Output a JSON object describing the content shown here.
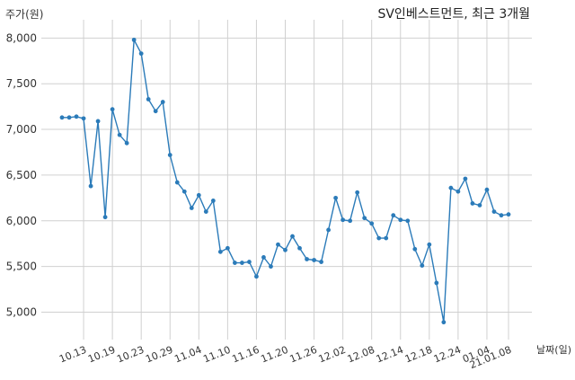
{
  "chart_data": {
    "type": "line",
    "title": "SV인베스트먼트, 최근 3개월",
    "ylabel": "주가(원)",
    "xlabel": "날짜(일)",
    "ylim": [
      4700,
      8200
    ],
    "yticks": [
      5000,
      5500,
      6000,
      6500,
      7000,
      7500,
      8000
    ],
    "ytick_labels": [
      "5,000",
      "5,500",
      "6,000",
      "6,500",
      "7,000",
      "7,500",
      "8,000"
    ],
    "xtick_labels": [
      "10.13",
      "10.19",
      "10.23",
      "10.29",
      "11.04",
      "11.10",
      "11.16",
      "11.20",
      "11.26",
      "12.02",
      "12.08",
      "12.14",
      "12.18",
      "12.24",
      "01.04",
      "21.01.08"
    ],
    "xtick_indices": [
      3,
      7,
      11,
      15,
      19,
      23,
      27,
      31,
      35,
      39,
      43,
      47,
      51,
      55,
      59,
      62
    ],
    "grid": true,
    "line_color": "#2b7bb9",
    "series": [
      {
        "values": [
          7130,
          7130,
          7140,
          7120,
          6380,
          7090,
          6040,
          7220,
          6940,
          6850,
          7980,
          7830,
          7330,
          7200,
          7300,
          6720,
          6420,
          6320,
          6140,
          6280,
          6100,
          6220,
          5660,
          5700,
          5540,
          5540,
          5550,
          5390,
          5600,
          5500,
          5740,
          5680,
          5830,
          5700,
          5580,
          5570,
          5550,
          5900,
          6250,
          6010,
          6000,
          6310,
          6030,
          5970,
          5810,
          5810,
          6060,
          6010,
          6000,
          5690,
          5510,
          5740,
          5320,
          4890,
          6360,
          6320,
          6460,
          6190,
          6170,
          6340,
          6100,
          6060,
          6070
        ]
      }
    ]
  }
}
